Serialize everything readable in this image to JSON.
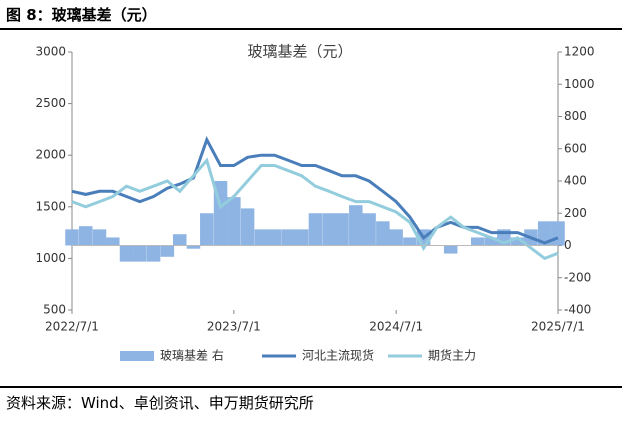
{
  "header": "图 8：玻璃基差（元）",
  "source": "资料来源：Wind、卓创资讯、申万期货研究所",
  "chart_data": {
    "type": "combo",
    "title": "玻璃基差（元）",
    "x": [
      "2022/7/1",
      "2022/8/1",
      "2022/9/1",
      "2022/10/1",
      "2022/11/1",
      "2022/12/1",
      "2023/1/1",
      "2023/2/1",
      "2023/3/1",
      "2023/4/1",
      "2023/5/1",
      "2023/6/1",
      "2023/7/1",
      "2023/8/1",
      "2023/9/1",
      "2023/10/1",
      "2023/11/1",
      "2023/12/1",
      "2024/1/1",
      "2024/2/1",
      "2024/3/1",
      "2024/4/1",
      "2024/5/1",
      "2024/6/1",
      "2024/7/1",
      "2024/8/1",
      "2024/9/1",
      "2024/10/1",
      "2024/11/1",
      "2024/12/1",
      "2025/1/1",
      "2025/2/1",
      "2025/3/1",
      "2025/4/1",
      "2025/5/1",
      "2025/6/1",
      "2025/7/1"
    ],
    "series": [
      {
        "name": "玻璃基差 右",
        "kind": "bar",
        "axis": "y2",
        "color": "#8eb4e3",
        "values": [
          100,
          120,
          100,
          50,
          -100,
          -100,
          -100,
          -70,
          70,
          -20,
          200,
          400,
          300,
          230,
          100,
          100,
          100,
          100,
          200,
          200,
          200,
          250,
          200,
          150,
          100,
          50,
          100,
          0,
          -50,
          0,
          50,
          50,
          100,
          50,
          100,
          150,
          150
        ]
      },
      {
        "name": "河北主流现货",
        "kind": "line",
        "color": "#4a7ebb",
        "values": [
          1650,
          1620,
          1650,
          1650,
          1600,
          1550,
          1600,
          1680,
          1720,
          1780,
          2150,
          1900,
          1900,
          1980,
          2000,
          2000,
          1950,
          1900,
          1900,
          1850,
          1800,
          1800,
          1750,
          1650,
          1550,
          1400,
          1200,
          1300,
          1350,
          1300,
          1300,
          1250,
          1250,
          1250,
          1200,
          1150,
          1200
        ]
      },
      {
        "name": "期货主力",
        "kind": "line",
        "color": "#93cddd",
        "values": [
          1550,
          1500,
          1550,
          1600,
          1700,
          1650,
          1700,
          1750,
          1650,
          1800,
          1950,
          1500,
          1600,
          1750,
          1900,
          1900,
          1850,
          1800,
          1700,
          1650,
          1600,
          1550,
          1550,
          1500,
          1450,
          1350,
          1100,
          1300,
          1400,
          1300,
          1250,
          1200,
          1150,
          1200,
          1100,
          1000,
          1050
        ]
      }
    ],
    "xlim": [
      "2022/7/1",
      "2025/7/1"
    ],
    "xticks": [
      "2022/7/1",
      "2023/7/1",
      "2024/7/1",
      "2025/7/1"
    ],
    "ylim": [
      500,
      3000
    ],
    "yticks": [
      500,
      1000,
      1500,
      2000,
      2500,
      3000
    ],
    "y2lim": [
      -400,
      1200
    ],
    "y2ticks": [
      -400,
      -200,
      0,
      200,
      400,
      600,
      800,
      1000,
      1200
    ]
  }
}
